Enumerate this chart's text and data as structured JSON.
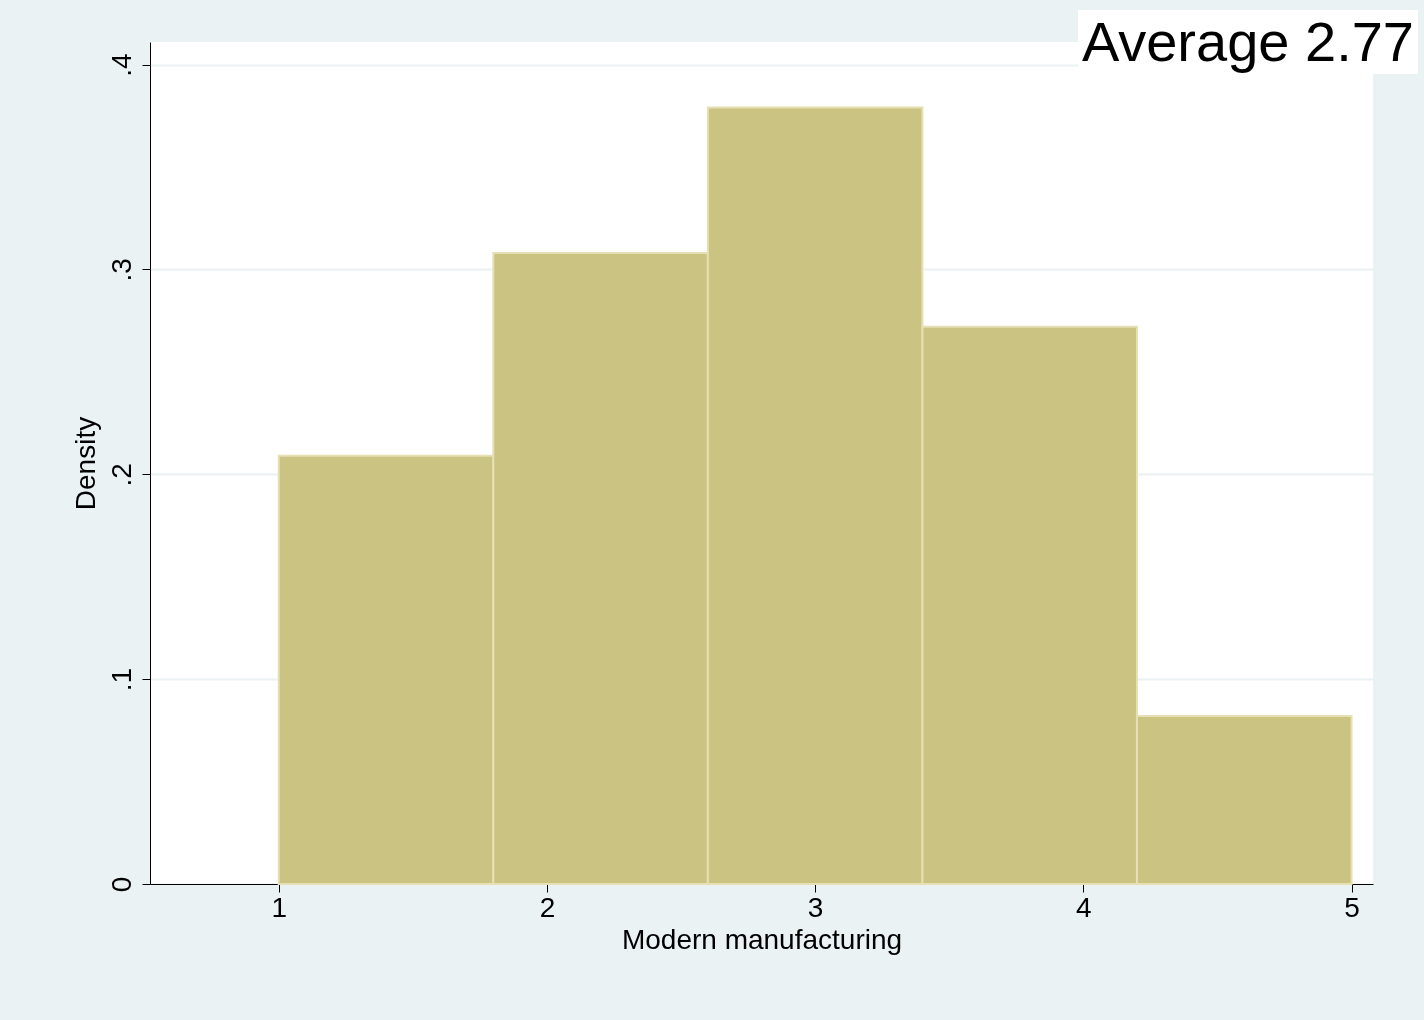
{
  "chart_data": {
    "type": "histogram",
    "xlabel": "Modern manufacturing",
    "ylabel": "Density",
    "annotations": [
      "Average 2.77"
    ],
    "bins": [
      1,
      1.8,
      2.6,
      3.4,
      4.2,
      5
    ],
    "values": [
      0.209,
      0.308,
      0.379,
      0.272,
      0.082
    ],
    "color": "#cbc382",
    "xlim": [
      0.52,
      5.08
    ],
    "xticks": [
      1,
      2,
      3,
      4,
      5
    ],
    "ylim": [
      0,
      0.411
    ],
    "yticks": [
      0,
      {
        "value": 0.1,
        "label": ".1"
      },
      {
        "value": 0.2,
        "label": ".2"
      },
      {
        "value": 0.3,
        "label": ".3"
      },
      {
        "value": 0.4,
        "label": ".4"
      }
    ],
    "grid": "y"
  }
}
